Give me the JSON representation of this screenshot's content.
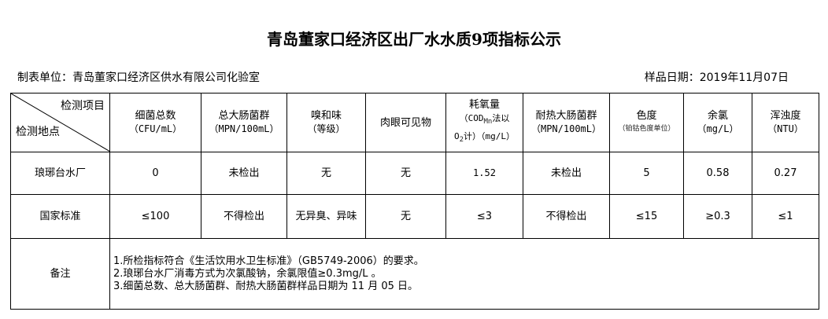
{
  "title": "青岛董家口经济区出厂水水质9项指标公示",
  "unit": "制表单位：青岛董家口经济区供水有限公司化验室",
  "sample_date": "样品日期：2019年11月07日",
  "corner": {
    "top": "检测项目",
    "bottom": "检测地点"
  },
  "headers": [
    {
      "name": "细菌总数",
      "unit": "（CFU/mL）"
    },
    {
      "name": "总大肠菌群",
      "unit": "（MPN/100mL）"
    },
    {
      "name": "嗅和味",
      "unit": "（等级）"
    },
    {
      "name": "肉眼可见物",
      "unit": ""
    },
    {
      "name": "耗氧量",
      "unit": "（COD",
      "unit_sub": "Mn",
      "unit2": "法以",
      "unit3": "O",
      "unit3_sub": "2",
      "unit4": "计）（mg/L）"
    },
    {
      "name": "耐热大肠菌群",
      "unit": "（MPN/100mL）"
    },
    {
      "name": "色度",
      "unit": "（铂钴色度单位）"
    },
    {
      "name": "余氯",
      "unit": "（mg/L）"
    },
    {
      "name": "浑浊度",
      "unit": "（NTU）"
    }
  ],
  "rows": [
    {
      "label": "琅琊台水厂",
      "values": [
        "0",
        "未检出",
        "无",
        "无",
        "1.52",
        "未检出",
        "5",
        "0.58",
        "0.27"
      ]
    },
    {
      "label": "国家标准",
      "values": [
        "≤100",
        "不得检出",
        "无异臭、异味",
        "无",
        "≤3",
        "不得检出",
        "≤15",
        "≥0.3",
        "≤1"
      ]
    }
  ],
  "remarks": {
    "label": "备注",
    "lines": [
      "1.所检指标符合《生活饮用水卫生标准》（GB5749-2006）的要求。",
      "2.琅琊台水厂消毒方式为次氯酸钠，余氯限值≥0.3mg/L 。",
      "3.细菌总数、总大肠菌群、耐热大肠菌群样品日期为 11 月 05 日。"
    ]
  }
}
